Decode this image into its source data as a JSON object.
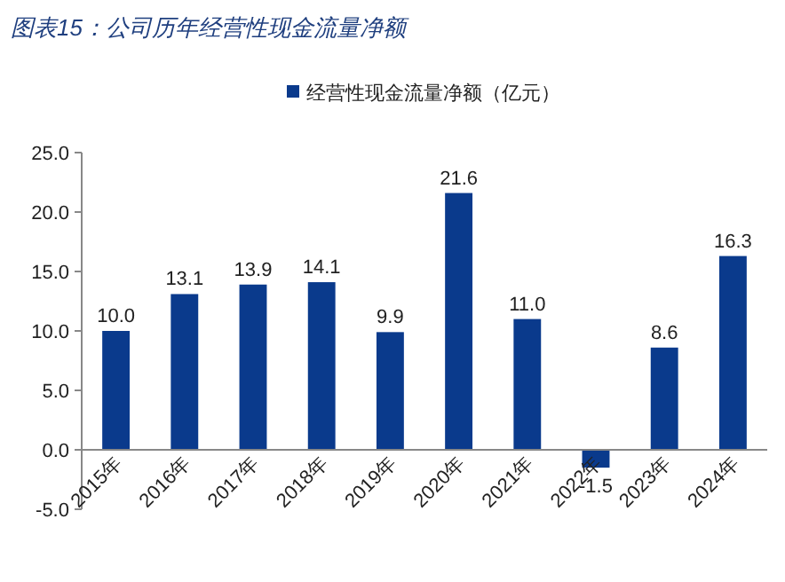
{
  "chart_data": {
    "type": "bar",
    "title": "图表15：公司历年经营性现金流量净额",
    "categories": [
      "2015年",
      "2016年",
      "2017年",
      "2018年",
      "2019年",
      "2020年",
      "2021年",
      "2022年",
      "2023年",
      "2024年"
    ],
    "series": [
      {
        "name": "经营性现金流量净额（亿元）",
        "color": "#0a3a8c",
        "values": [
          10.0,
          13.1,
          13.9,
          14.1,
          9.9,
          21.6,
          11.0,
          -1.5,
          8.6,
          16.3
        ],
        "value_labels": [
          "10.0",
          "13.1",
          "13.9",
          "14.1",
          "9.9",
          "21.6",
          "11.0",
          "-1.5",
          "8.6",
          "16.3"
        ]
      }
    ],
    "ylim": [
      -5,
      25
    ],
    "yticks": [
      {
        "value": -5,
        "label": "-5.0"
      },
      {
        "value": 0,
        "label": "0.0"
      },
      {
        "value": 5,
        "label": "5.0"
      },
      {
        "value": 10,
        "label": "10.0"
      },
      {
        "value": 15,
        "label": "15.0"
      },
      {
        "value": 20,
        "label": "20.0"
      },
      {
        "value": 25,
        "label": "25.0"
      }
    ],
    "legend": "top",
    "grid": false
  }
}
